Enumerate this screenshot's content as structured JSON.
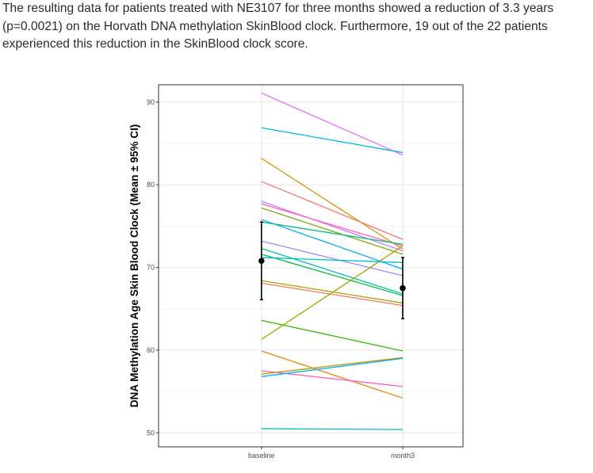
{
  "article": {
    "paragraph": "The resulting data for patients treated with NE3107 for three months showed a reduction of 3.3 years (p=0.0021) on the Horvath DNA methylation SkinBlood clock.  Furthermore, 19 out of the 22 patients experienced this reduction in the SkinBlood clock score."
  },
  "chart_data": {
    "type": "line",
    "title": "",
    "xlabel": "",
    "ylabel": "DNA Methylation Age Skin Blood Clock (Mean ± 95% CI)",
    "categories": [
      "baseline",
      "month3"
    ],
    "ylim": [
      48.3,
      92.1
    ],
    "yticks": [
      50,
      60,
      70,
      80,
      90
    ],
    "grid": true,
    "series": [
      {
        "values": [
          91.1,
          83.6
        ],
        "color": "#E76BF3"
      },
      {
        "values": [
          86.9,
          83.9
        ],
        "color": "#00B8E7"
      },
      {
        "values": [
          83.2,
          72.2
        ],
        "color": "#D89000"
      },
      {
        "values": [
          80.4,
          73.4
        ],
        "color": "#F8766D"
      },
      {
        "values": [
          78.0,
          72.0
        ],
        "color": "#C77CFF"
      },
      {
        "values": [
          77.7,
          72.6
        ],
        "color": "#FF62BC"
      },
      {
        "values": [
          77.2,
          71.6
        ],
        "color": "#7CAE00"
      },
      {
        "values": [
          75.8,
          69.8
        ],
        "color": "#00A9FF"
      },
      {
        "values": [
          75.5,
          72.8
        ],
        "color": "#00BF7D"
      },
      {
        "values": [
          73.2,
          69.0
        ],
        "color": "#9590FF"
      },
      {
        "values": [
          72.3,
          66.8
        ],
        "color": "#00C0AF"
      },
      {
        "values": [
          71.6,
          66.6
        ],
        "color": "#00BA38"
      },
      {
        "values": [
          71.2,
          70.6
        ],
        "color": "#00BCD8"
      },
      {
        "values": [
          68.4,
          65.7
        ],
        "color": "#A3A500"
      },
      {
        "values": [
          68.1,
          65.4
        ],
        "color": "#F8766D"
      },
      {
        "values": [
          63.6,
          59.9
        ],
        "color": "#39B600"
      },
      {
        "values": [
          61.3,
          72.6
        ],
        "color": "#A3A500"
      },
      {
        "values": [
          59.9,
          54.2
        ],
        "color": "#E58700"
      },
      {
        "values": [
          57.5,
          55.6
        ],
        "color": "#FF61C3"
      },
      {
        "values": [
          57.1,
          59.1
        ],
        "color": "#C09B00"
      },
      {
        "values": [
          56.8,
          59.0
        ],
        "color": "#00B0F6"
      },
      {
        "values": [
          50.5,
          50.4
        ],
        "color": "#00BFC4"
      }
    ],
    "summary": {
      "mean": [
        70.8,
        67.5
      ],
      "ci_lower": [
        66.1,
        63.8
      ],
      "ci_upper": [
        75.5,
        71.2
      ],
      "color": "#000000"
    }
  }
}
